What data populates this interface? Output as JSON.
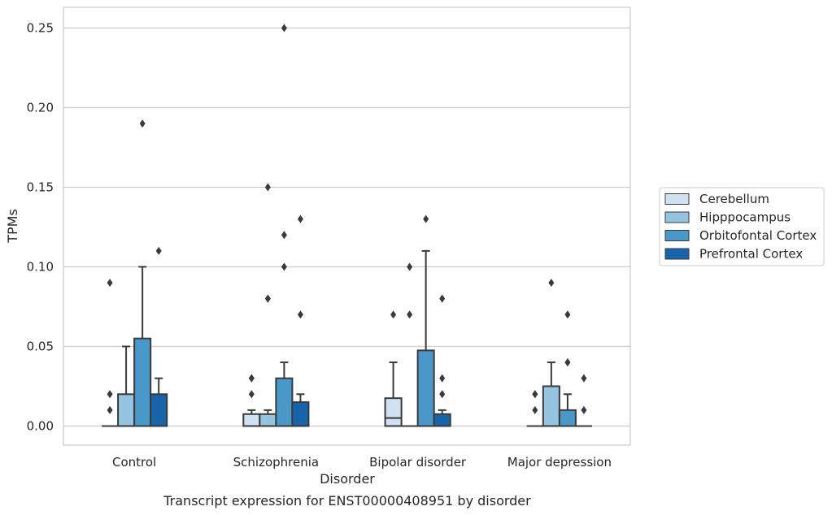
{
  "chart_data": {
    "type": "box",
    "caption": "Transcript expression for ENST00000408951 by disorder",
    "xlabel": "Disorder",
    "ylabel": "TPMs",
    "ylim": [
      -0.012,
      0.263
    ],
    "yticks": [
      0.0,
      0.05,
      0.1,
      0.15,
      0.2,
      0.25
    ],
    "ytick_labels": [
      "0.00",
      "0.05",
      "0.10",
      "0.15",
      "0.20",
      "0.25"
    ],
    "grid": "horizontal",
    "legend_position": "right",
    "categories": [
      "Control",
      "Schizophrenia",
      "Bipolar disorder",
      "Major depression"
    ],
    "series": [
      {
        "name": "Cerebellum",
        "color": "#d0e1f2",
        "boxes": [
          {
            "q1": 0.0,
            "median": 0.0,
            "q3": 0.0,
            "whisker_low": 0.0,
            "whisker_high": 0.0,
            "outliers": [
              0.01,
              0.02,
              0.09
            ]
          },
          {
            "q1": 0.0,
            "median": 0.0,
            "q3": 0.0075,
            "whisker_low": 0.0,
            "whisker_high": 0.01,
            "outliers": [
              0.02,
              0.03,
              0.03
            ]
          },
          {
            "q1": 0.0,
            "median": 0.005,
            "q3": 0.0175,
            "whisker_low": 0.0,
            "whisker_high": 0.04,
            "outliers": [
              0.07
            ]
          },
          {
            "q1": 0.0,
            "median": 0.0,
            "q3": 0.0,
            "whisker_low": 0.0,
            "whisker_high": 0.0,
            "outliers": [
              0.01,
              0.02,
              0.02
            ]
          }
        ]
      },
      {
        "name": "Hipppocampus",
        "color": "#94c4df",
        "boxes": [
          {
            "q1": 0.0,
            "median": 0.0,
            "q3": 0.02,
            "whisker_low": 0.0,
            "whisker_high": 0.05,
            "outliers": []
          },
          {
            "q1": 0.0,
            "median": 0.0,
            "q3": 0.0075,
            "whisker_low": 0.0,
            "whisker_high": 0.01,
            "outliers": [
              0.08,
              0.08,
              0.15
            ]
          },
          {
            "q1": 0.0,
            "median": 0.0,
            "q3": 0.0,
            "whisker_low": 0.0,
            "whisker_high": 0.0,
            "outliers": [
              0.07,
              0.1
            ]
          },
          {
            "q1": 0.0,
            "median": 0.0,
            "q3": 0.025,
            "whisker_low": 0.0,
            "whisker_high": 0.04,
            "outliers": [
              0.09
            ]
          }
        ]
      },
      {
        "name": "Orbitofontal Cortex",
        "color": "#4a98c9",
        "boxes": [
          {
            "q1": 0.0,
            "median": 0.0,
            "q3": 0.055,
            "whisker_low": 0.0,
            "whisker_high": 0.1,
            "outliers": [
              0.19
            ]
          },
          {
            "q1": 0.0,
            "median": 0.0,
            "q3": 0.03,
            "whisker_low": 0.0,
            "whisker_high": 0.04,
            "outliers": [
              0.1,
              0.12,
              0.25
            ]
          },
          {
            "q1": 0.0,
            "median": 0.0,
            "q3": 0.0475,
            "whisker_low": 0.0,
            "whisker_high": 0.11,
            "outliers": [
              0.13
            ]
          },
          {
            "q1": 0.0,
            "median": 0.0,
            "q3": 0.01,
            "whisker_low": 0.0,
            "whisker_high": 0.02,
            "outliers": [
              0.04,
              0.04,
              0.07
            ]
          }
        ]
      },
      {
        "name": "Prefrontal Cortex",
        "color": "#1764ab",
        "boxes": [
          {
            "q1": 0.0,
            "median": 0.0,
            "q3": 0.02,
            "whisker_low": 0.0,
            "whisker_high": 0.03,
            "outliers": [
              0.11
            ]
          },
          {
            "q1": 0.0,
            "median": 0.0,
            "q3": 0.015,
            "whisker_low": 0.0,
            "whisker_high": 0.02,
            "outliers": [
              0.07,
              0.13
            ]
          },
          {
            "q1": 0.0,
            "median": 0.0,
            "q3": 0.0075,
            "whisker_low": 0.0,
            "whisker_high": 0.01,
            "outliers": [
              0.02,
              0.03,
              0.08
            ]
          },
          {
            "q1": 0.0,
            "median": 0.0,
            "q3": 0.0,
            "whisker_low": 0.0,
            "whisker_high": 0.0,
            "outliers": [
              0.01,
              0.03
            ]
          }
        ]
      }
    ]
  }
}
